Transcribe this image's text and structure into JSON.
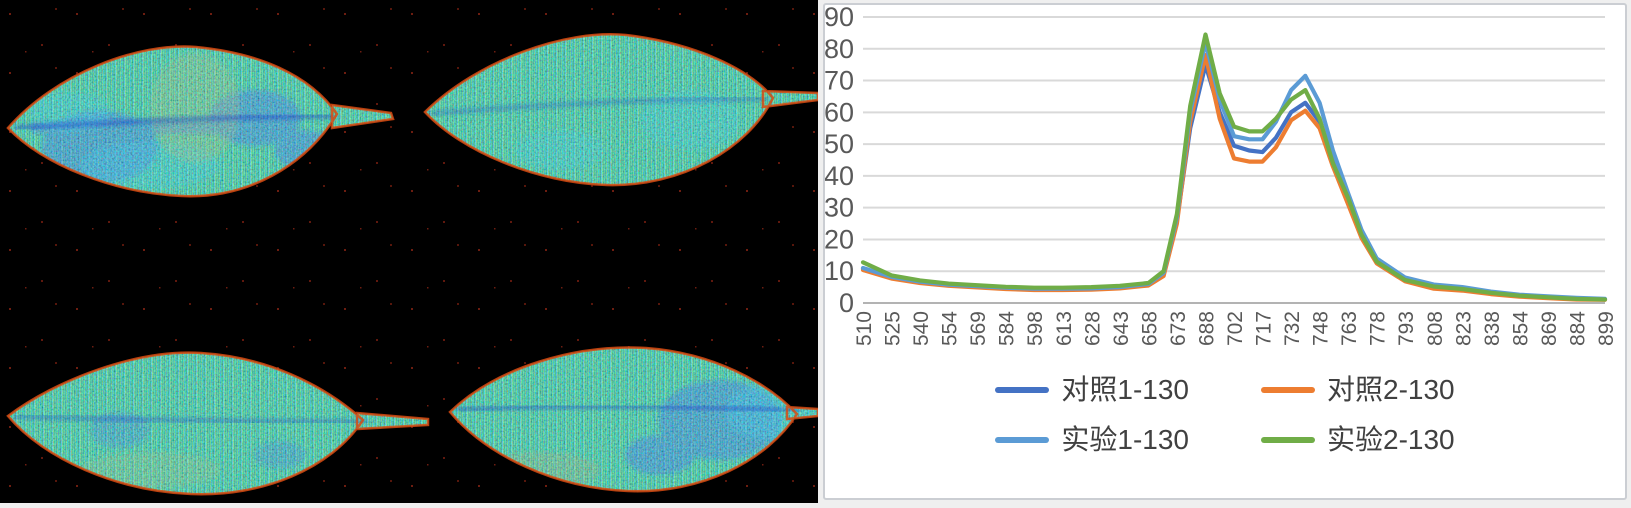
{
  "left_panel": {
    "type": "hyperspectral-false-color-leaf-maps",
    "background": "#000000",
    "leaves": [
      {
        "position": "top-left",
        "dominant_colors": [
          "green",
          "cyan",
          "blue-patches",
          "orange-center",
          "red-edge"
        ]
      },
      {
        "position": "top-right",
        "dominant_colors": [
          "green",
          "cyan",
          "red-edge"
        ]
      },
      {
        "position": "bottom-left",
        "dominant_colors": [
          "green",
          "cyan",
          "red-edge"
        ]
      },
      {
        "position": "bottom-right",
        "dominant_colors": [
          "green",
          "cyan",
          "blue-patches",
          "red-edge"
        ]
      }
    ]
  },
  "chart_data": {
    "type": "line",
    "title": "",
    "xlabel": "",
    "ylabel": "",
    "ylim": [
      0,
      90
    ],
    "ytick_step": 10,
    "grid": "horizontal",
    "legend_position": "bottom",
    "y_tick_labels": [
      "90",
      "80",
      "70",
      "60",
      "50",
      "40",
      "30",
      "20",
      "10",
      "0"
    ],
    "x_tick_labels": [
      "510",
      "525",
      "540",
      "554",
      "569",
      "584",
      "598",
      "613",
      "628",
      "643",
      "658",
      "673",
      "688",
      "702",
      "717",
      "732",
      "748",
      "763",
      "778",
      "793",
      "808",
      "823",
      "838",
      "854",
      "869",
      "884",
      "899"
    ],
    "x": [
      510,
      525,
      540,
      554,
      569,
      584,
      598,
      613,
      628,
      643,
      658,
      666,
      673,
      680,
      688,
      695,
      702,
      710,
      717,
      724,
      732,
      740,
      748,
      755,
      763,
      770,
      778,
      793,
      808,
      823,
      838,
      854,
      869,
      884,
      899
    ],
    "series": [
      {
        "name": "对照1-130",
        "color": "#4472C4",
        "values": [
          10.8,
          8.0,
          6.6,
          5.7,
          5.2,
          4.7,
          4.4,
          4.4,
          4.5,
          4.9,
          5.9,
          9.0,
          26,
          55,
          75,
          60,
          49.5,
          48,
          47.5,
          52,
          60,
          63,
          57,
          45,
          33.5,
          22,
          13.5,
          7.5,
          5.0,
          4.6,
          3.3,
          2.4,
          1.9,
          1.4,
          1.2
        ]
      },
      {
        "name": "对照2-130",
        "color": "#ED7D31",
        "values": [
          10.4,
          7.7,
          6.3,
          5.4,
          4.9,
          4.4,
          4.1,
          4.1,
          4.2,
          4.6,
          5.5,
          8.5,
          25,
          57,
          78,
          58,
          45.5,
          44.5,
          44.5,
          49,
          57.5,
          60.5,
          55,
          43,
          31,
          20.5,
          12.5,
          6.8,
          4.5,
          3.9,
          2.8,
          2.0,
          1.5,
          1.1,
          1.0
        ]
      },
      {
        "name": "实验1-130",
        "color": "#5B9BD5",
        "values": [
          11.0,
          8.2,
          6.7,
          5.8,
          5.3,
          4.8,
          4.5,
          4.5,
          4.6,
          5.0,
          6.0,
          9.5,
          27,
          60,
          82,
          64,
          52.5,
          51.5,
          51.5,
          57,
          67,
          71.5,
          63,
          48,
          34.5,
          23,
          14.0,
          8.0,
          5.8,
          5.0,
          3.6,
          2.6,
          2.1,
          1.6,
          1.3
        ]
      },
      {
        "name": "实验2-130",
        "color": "#70AD47",
        "values": [
          12.8,
          8.7,
          7.1,
          6.1,
          5.6,
          5.1,
          4.8,
          4.8,
          5.0,
          5.4,
          6.3,
          10.0,
          28,
          62,
          84.5,
          66,
          55.5,
          54,
          54,
          58,
          64,
          67,
          58,
          44,
          33,
          21.5,
          13.0,
          7.2,
          5.2,
          4.4,
          3.2,
          2.3,
          1.8,
          1.3,
          1.1
        ]
      }
    ],
    "styles": {
      "grid_color": "#d9d9d9",
      "axis_color": "#b3b3b3",
      "tick_text_color": "#595959",
      "plot_bg": "#ffffff"
    }
  }
}
